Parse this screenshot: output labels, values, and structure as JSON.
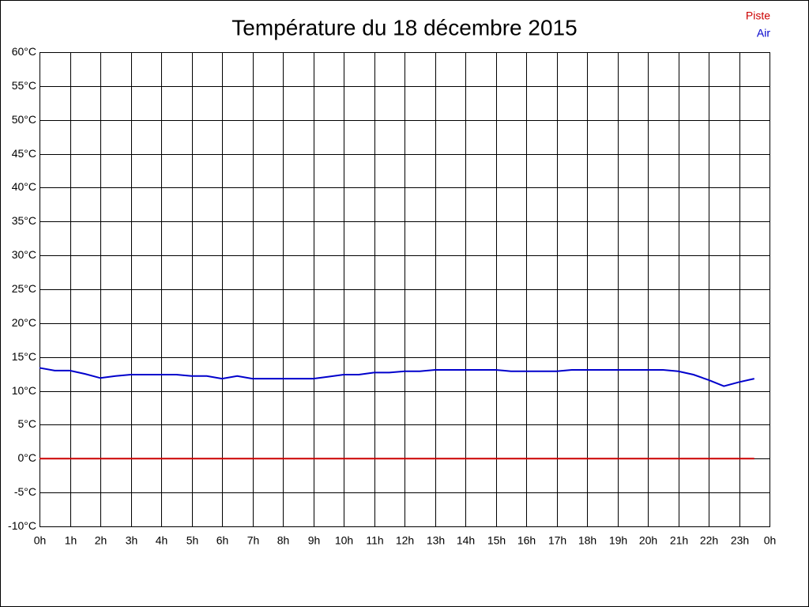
{
  "chart_data": {
    "type": "line",
    "title": "Température du 18 décembre 2015",
    "x": [
      0,
      0.5,
      1,
      1.5,
      2,
      2.5,
      3,
      3.5,
      4,
      4.5,
      5,
      5.5,
      6,
      6.5,
      7,
      7.5,
      8,
      8.5,
      9,
      9.5,
      10,
      10.5,
      11,
      11.5,
      12,
      12.5,
      13,
      13.5,
      14,
      14.5,
      15,
      15.5,
      16,
      16.5,
      17,
      17.5,
      18,
      18.5,
      19,
      19.5,
      20,
      20.5,
      21,
      21.5,
      22,
      22.5,
      23,
      23.5
    ],
    "series": [
      {
        "name": "Piste",
        "color": "#cc0000",
        "values": [
          0,
          0,
          0,
          0,
          0,
          0,
          0,
          0,
          0,
          0,
          0,
          0,
          0,
          0,
          0,
          0,
          0,
          0,
          0,
          0,
          0,
          0,
          0,
          0,
          0,
          0,
          0,
          0,
          0,
          0,
          0,
          0,
          0,
          0,
          0,
          0,
          0,
          0,
          0,
          0,
          0,
          0,
          0,
          0,
          0,
          0,
          0,
          0
        ]
      },
      {
        "name": "Air",
        "color": "#0000cc",
        "values": [
          13.4,
          13.0,
          13.0,
          12.5,
          11.9,
          12.2,
          12.4,
          12.4,
          12.4,
          12.4,
          12.2,
          12.2,
          11.8,
          12.2,
          11.8,
          11.8,
          11.8,
          11.8,
          11.8,
          12.1,
          12.4,
          12.4,
          12.7,
          12.7,
          12.9,
          12.9,
          13.1,
          13.1,
          13.1,
          13.1,
          13.1,
          12.9,
          12.9,
          12.9,
          12.9,
          13.1,
          13.1,
          13.1,
          13.1,
          13.1,
          13.1,
          13.1,
          12.9,
          12.4,
          11.6,
          10.7,
          11.3,
          11.8
        ]
      }
    ],
    "xlim": [
      0,
      24
    ],
    "xticks": [
      {
        "value": 0,
        "label": "0h"
      },
      {
        "value": 1,
        "label": "1h"
      },
      {
        "value": 2,
        "label": "2h"
      },
      {
        "value": 3,
        "label": "3h"
      },
      {
        "value": 4,
        "label": "4h"
      },
      {
        "value": 5,
        "label": "5h"
      },
      {
        "value": 6,
        "label": "6h"
      },
      {
        "value": 7,
        "label": "7h"
      },
      {
        "value": 8,
        "label": "8h"
      },
      {
        "value": 9,
        "label": "9h"
      },
      {
        "value": 10,
        "label": "10h"
      },
      {
        "value": 11,
        "label": "11h"
      },
      {
        "value": 12,
        "label": "12h"
      },
      {
        "value": 13,
        "label": "13h"
      },
      {
        "value": 14,
        "label": "14h"
      },
      {
        "value": 15,
        "label": "15h"
      },
      {
        "value": 16,
        "label": "16h"
      },
      {
        "value": 17,
        "label": "17h"
      },
      {
        "value": 18,
        "label": "18h"
      },
      {
        "value": 19,
        "label": "19h"
      },
      {
        "value": 20,
        "label": "20h"
      },
      {
        "value": 21,
        "label": "21h"
      },
      {
        "value": 22,
        "label": "22h"
      },
      {
        "value": 23,
        "label": "23h"
      },
      {
        "value": 24,
        "label": "0h"
      }
    ],
    "ylim": [
      -10,
      60
    ],
    "yticks": [
      {
        "value": -10,
        "label": "-10°C"
      },
      {
        "value": -5,
        "label": "-5°C"
      },
      {
        "value": 0,
        "label": "0°C"
      },
      {
        "value": 5,
        "label": "5°C"
      },
      {
        "value": 10,
        "label": "10°C"
      },
      {
        "value": 15,
        "label": "15°C"
      },
      {
        "value": 20,
        "label": "20°C"
      },
      {
        "value": 25,
        "label": "25°C"
      },
      {
        "value": 30,
        "label": "30°C"
      },
      {
        "value": 35,
        "label": "35°C"
      },
      {
        "value": 40,
        "label": "40°C"
      },
      {
        "value": 45,
        "label": "45°C"
      },
      {
        "value": 50,
        "label": "50°C"
      },
      {
        "value": 55,
        "label": "55°C"
      },
      {
        "value": 60,
        "label": "60°C"
      }
    ],
    "grid": true,
    "legend": "top-right"
  }
}
